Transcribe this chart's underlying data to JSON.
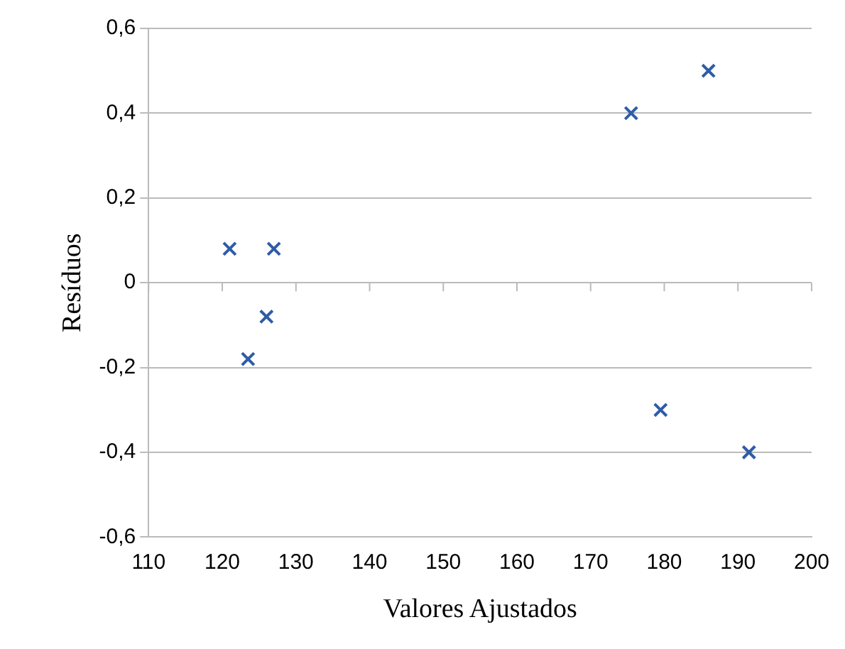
{
  "chart_data": {
    "type": "scatter",
    "xlabel": "Valores Ajustados",
    "ylabel": "Resíduos",
    "series": [
      {
        "color": "#2e5ca8",
        "x": [
          121,
          127,
          126,
          123.5,
          175.5,
          186,
          179.5,
          191.5
        ],
        "values": [
          0.08,
          0.08,
          -0.08,
          -0.18,
          0.4,
          0.5,
          -0.3,
          -0.4
        ]
      }
    ],
    "xlim": [
      110,
      200
    ],
    "xticks": [
      110,
      120,
      130,
      140,
      150,
      160,
      170,
      180,
      190,
      200
    ],
    "ylim": [
      -0.6,
      0.6
    ],
    "yticks": [
      {
        "value": -0.6,
        "label": "-0,6"
      },
      {
        "value": -0.4,
        "label": "-0,4"
      },
      {
        "value": -0.2,
        "label": "-0,2"
      },
      0,
      {
        "value": 0.2,
        "label": "0,2"
      },
      {
        "value": 0.4,
        "label": "0,4"
      },
      {
        "value": 0.6,
        "label": "0,6"
      }
    ],
    "grid": "y",
    "marker": "cross",
    "legend": false
  }
}
